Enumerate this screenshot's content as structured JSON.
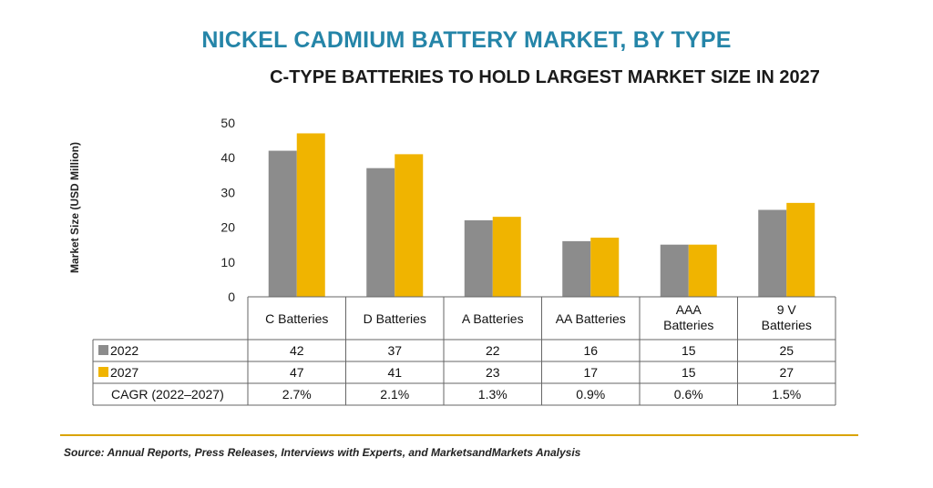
{
  "chart_data": {
    "type": "bar",
    "title": "NICKEL CADMIUM BATTERY MARKET, BY TYPE",
    "subtitle": "C-TYPE BATTERIES TO HOLD LARGEST MARKET SIZE IN 2027",
    "ylabel": "Market Size (USD Million)",
    "xlabel": "",
    "ylim": [
      0,
      50
    ],
    "yticks": [
      "0",
      "10",
      "20",
      "30",
      "40",
      "50"
    ],
    "categories": [
      [
        "C Batteries"
      ],
      [
        "D Batteries"
      ],
      [
        "A Batteries"
      ],
      [
        "AA Batteries"
      ],
      [
        "AAA",
        "Batteries"
      ],
      [
        "9 V",
        "Batteries"
      ]
    ],
    "series": [
      {
        "name": "2022",
        "color": "#8c8c8c",
        "values": [
          42,
          37,
          22,
          16,
          15,
          25
        ],
        "labels": [
          "42",
          "37",
          "22",
          "16",
          "15",
          "25"
        ]
      },
      {
        "name": "2027",
        "color": "#f0b400",
        "values": [
          47,
          41,
          23,
          17,
          15,
          27
        ],
        "labels": [
          "47",
          "41",
          "23",
          "17",
          "15",
          "27"
        ]
      }
    ],
    "cagr": {
      "name": "CAGR (2022–2027)",
      "values": [
        "2.7%",
        "2.1%",
        "1.3%",
        "0.9%",
        "0.6%",
        "1.5%"
      ]
    },
    "grid": false,
    "legend": "table-left"
  },
  "source": "Source: Annual Reports, Press Releases, Interviews with Experts, and MarketsandMarkets Analysis"
}
